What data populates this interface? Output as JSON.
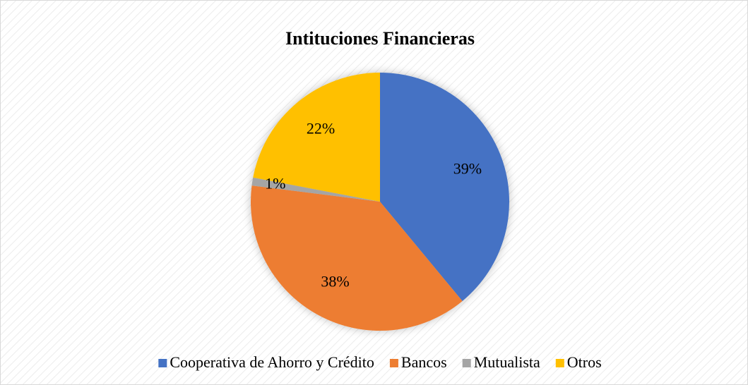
{
  "chart_data": {
    "type": "pie",
    "title": "Intituciones Financieras",
    "categories": [
      "Cooperativa de Ahorro y Crédito",
      "Bancos",
      "Mutualista",
      "Otros"
    ],
    "values": [
      39,
      38,
      1,
      22
    ],
    "value_labels": [
      "39%",
      "38%",
      "1%",
      "22%"
    ],
    "colors": [
      "#4472c4",
      "#ed7d31",
      "#a5a5a5",
      "#ffc000"
    ],
    "legend": "bottom"
  }
}
